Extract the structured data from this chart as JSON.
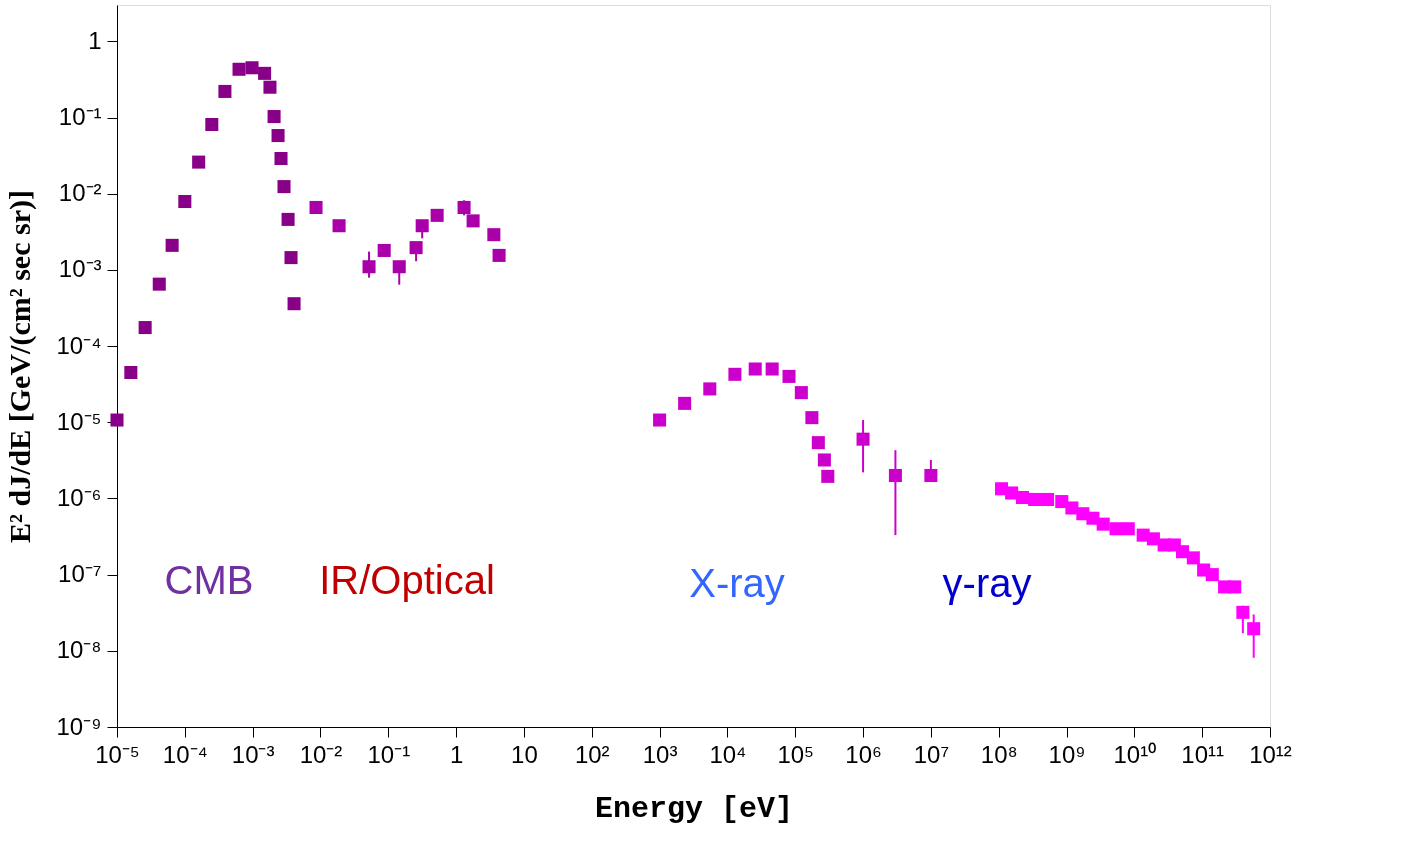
{
  "chart_data": {
    "type": "scatter",
    "xlabel": "Energy [eV]",
    "ylabel": "E² dJ/dE  [GeV/(cm² sec sr)]",
    "log": "xy",
    "marker": "square",
    "grid": false,
    "xlim": [
      1e-05,
      1000000000000.0
    ],
    "ylim": [
      1e-09,
      3
    ],
    "xticks": [
      {
        "value": 1e-05,
        "label": "10⁻⁵"
      },
      {
        "value": 0.0001,
        "label": "10⁻⁴"
      },
      {
        "value": 0.001,
        "label": "10⁻³"
      },
      {
        "value": 0.01,
        "label": "10⁻²"
      },
      {
        "value": 0.1,
        "label": "10⁻¹"
      },
      1,
      10,
      {
        "value": 100,
        "label": "10²"
      },
      {
        "value": 1000,
        "label": "10³"
      },
      {
        "value": 10000,
        "label": "10⁴"
      },
      {
        "value": 100000,
        "label": "10⁵"
      },
      {
        "value": 1000000,
        "label": "10⁶"
      },
      {
        "value": 10000000,
        "label": "10⁷"
      },
      {
        "value": 100000000,
        "label": "10⁸"
      },
      {
        "value": 1000000000,
        "label": "10⁹"
      },
      {
        "value": 10000000000,
        "label": "10¹⁰"
      },
      {
        "value": 100000000000,
        "label": "10¹¹"
      },
      {
        "value": 1000000000000,
        "label": "10¹²"
      }
    ],
    "yticks": [
      1,
      {
        "value": 0.1,
        "label": "10⁻¹"
      },
      {
        "value": 0.01,
        "label": "10⁻²"
      },
      {
        "value": 0.001,
        "label": "10⁻³"
      },
      {
        "value": 0.0001,
        "label": "10⁻⁴"
      },
      {
        "value": 1e-05,
        "label": "10⁻⁵"
      },
      {
        "value": 1e-06,
        "label": "10⁻⁶"
      },
      {
        "value": 1e-07,
        "label": "10⁻⁷"
      },
      {
        "value": 1e-08,
        "label": "10⁻⁸"
      },
      {
        "value": 1e-09,
        "label": "10⁻⁹"
      }
    ],
    "annotations": [
      "CMB",
      "IR/Optical",
      "X-ray",
      "γ-ray"
    ],
    "series": [
      {
        "color": "#880088",
        "x": [
          1e-05,
          1.6e-05,
          2.6e-05,
          4.2e-05,
          6.5e-05,
          0.0001,
          0.00016,
          0.00025,
          0.00039,
          0.00063,
          0.00098,
          0.0015,
          0.0018,
          0.00207,
          0.00237,
          0.00262,
          0.0029,
          0.00333,
          0.00368,
          0.00408
        ],
        "values": [
          1.07e-05,
          4.5e-05,
          0.000175,
          0.00065,
          0.0021,
          0.0079,
          0.026,
          0.081,
          0.22,
          0.43,
          0.45,
          0.38,
          0.25,
          0.103,
          0.058,
          0.029,
          0.0124,
          0.0046,
          0.00145,
          0.00036
        ]
      },
      {
        "color": "#aa00aa",
        "x": [
          0.0086,
          0.0188,
          0.052,
          0.087,
          0.145,
          0.257,
          0.316,
          0.525,
          1.31,
          1.78,
          3.6,
          4.3
        ],
        "values": [
          0.0066,
          0.0038,
          0.0011,
          0.0018,
          0.0011,
          0.00196,
          0.0038,
          0.0052,
          0.0066,
          0.0044,
          0.0029,
          0.00155
        ],
        "errors": [
          null,
          null,
          [
            0.00079,
            0.00174
          ],
          null,
          [
            0.00064,
            0.0013
          ],
          [
            0.0013,
            0.0023
          ],
          [
            0.0026,
            0.0045
          ],
          null,
          [
            0.0052,
            0.0082
          ],
          null,
          null,
          null
        ]
      },
      {
        "color": "#cc00cc",
        "x": [
          1000,
          2340,
          5500,
          12900,
          25700,
          45700,
          81000,
          123000,
          176000,
          219000,
          269000,
          302000,
          1000000,
          3000000,
          10000000
        ],
        "values": [
          1.07e-05,
          1.77e-05,
          2.74e-05,
          4.26e-05,
          5e-05,
          5e-05,
          4e-05,
          2.45e-05,
          1.15e-05,
          5.4e-06,
          3.2e-06,
          1.95e-06,
          6e-06,
          2e-06,
          2e-06
        ],
        "errors": [
          null,
          null,
          null,
          null,
          null,
          null,
          null,
          null,
          null,
          null,
          null,
          null,
          [
            2.2e-06,
            1.07e-05
          ],
          [
            3.3e-07,
            4.3e-06
          ],
          [
            1.7e-06,
            3.2e-06
          ]
        ]
      },
      {
        "color": "#ff00ff",
        "x": [
          110000000,
          155000000,
          224000000,
          339000000,
          525000000,
          851000000,
          1200000000,
          1740000000,
          2450000000,
          3470000000,
          5370000000,
          8130000000,
          13500000000,
          19100000000,
          27500000000,
          38900000000,
          51300000000,
          74100000000,
          105000000000,
          141000000000,
          214000000000,
          302000000000,
          398000000000,
          575000000000
        ],
        "values": [
          1.34e-06,
          1.18e-06,
          1.03e-06,
          9.7e-07,
          9.7e-07,
          9.1e-07,
          7.5e-07,
          6.3e-07,
          5.5e-07,
          4.6e-07,
          4e-07,
          4e-07,
          3.3e-07,
          2.95e-07,
          2.45e-07,
          2.45e-07,
          2e-07,
          1.66e-07,
          1.15e-07,
          1e-07,
          6.9e-08,
          6.9e-08,
          3.2e-08,
          1.95e-08
        ],
        "errors": [
          null,
          null,
          null,
          null,
          null,
          null,
          null,
          null,
          null,
          null,
          null,
          null,
          null,
          null,
          null,
          null,
          null,
          null,
          null,
          null,
          null,
          null,
          [
            1.7e-08,
            3.9e-08
          ],
          [
            8.1e-09,
            3e-08
          ]
        ]
      }
    ]
  }
}
